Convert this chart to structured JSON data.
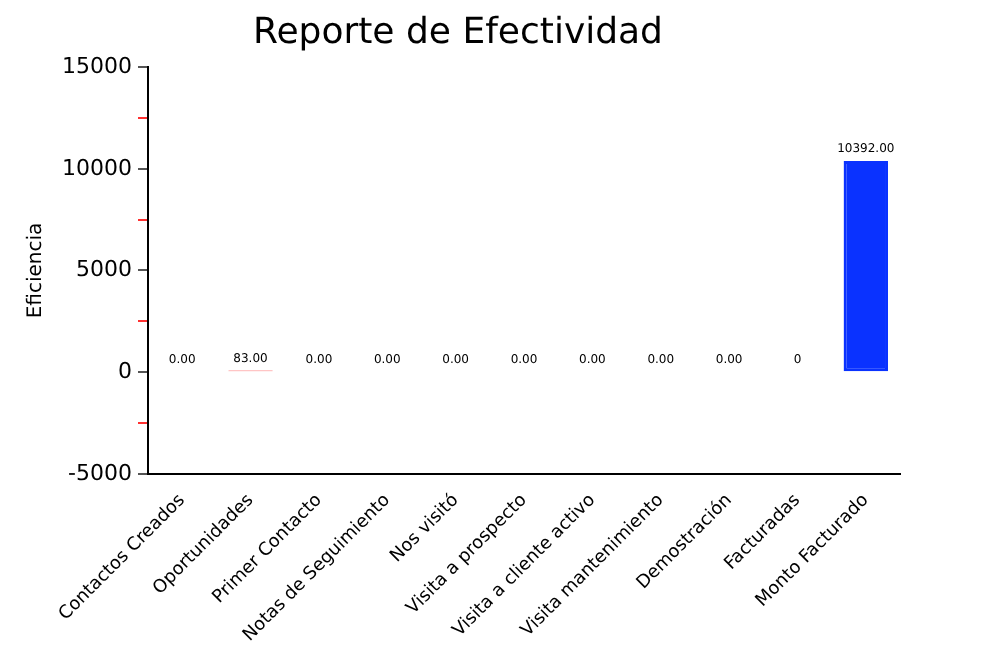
{
  "chart_data": {
    "type": "bar",
    "title": "Reporte de Efectividad",
    "ylabel": "Eficiencia",
    "categories": [
      "Contactos Creados",
      "Oportunidades",
      "Primer Contacto",
      "Notas de Seguimiento",
      "Nos visitó",
      "Visita a prospecto",
      "Visita a cliente activo",
      "Visita mantenimiento",
      "Demostración",
      "Facturadas",
      "Monto Facturado"
    ],
    "values": [
      0,
      83,
      0,
      0,
      0,
      0,
      0,
      0,
      0,
      0,
      10392
    ],
    "colors": [
      "#ff8c8c",
      "#ff1a1a",
      "#ff8c8c",
      "#ff8c8c",
      "#ff8c8c",
      "#ff8c8c",
      "#ff8c8c",
      "#ff8c8c",
      "#ff8c8c",
      "#ff8c8c",
      "#0a32ff"
    ],
    "value_labels": [
      "0.00",
      "83.00",
      "0.00",
      "0.00",
      "0.00",
      "0.00",
      "0.00",
      "0.00",
      "0.00",
      "0",
      "10392.00"
    ],
    "ylim": [
      -5000,
      15000
    ],
    "yticks": [
      -5000,
      {
        "value": -2500,
        "label": null
      },
      0,
      {
        "value": 2500,
        "label": null
      },
      5000,
      {
        "value": 7500,
        "label": null
      },
      10000,
      {
        "value": 12500,
        "label": null
      },
      15000
    ],
    "grid": false,
    "legend": false
  }
}
